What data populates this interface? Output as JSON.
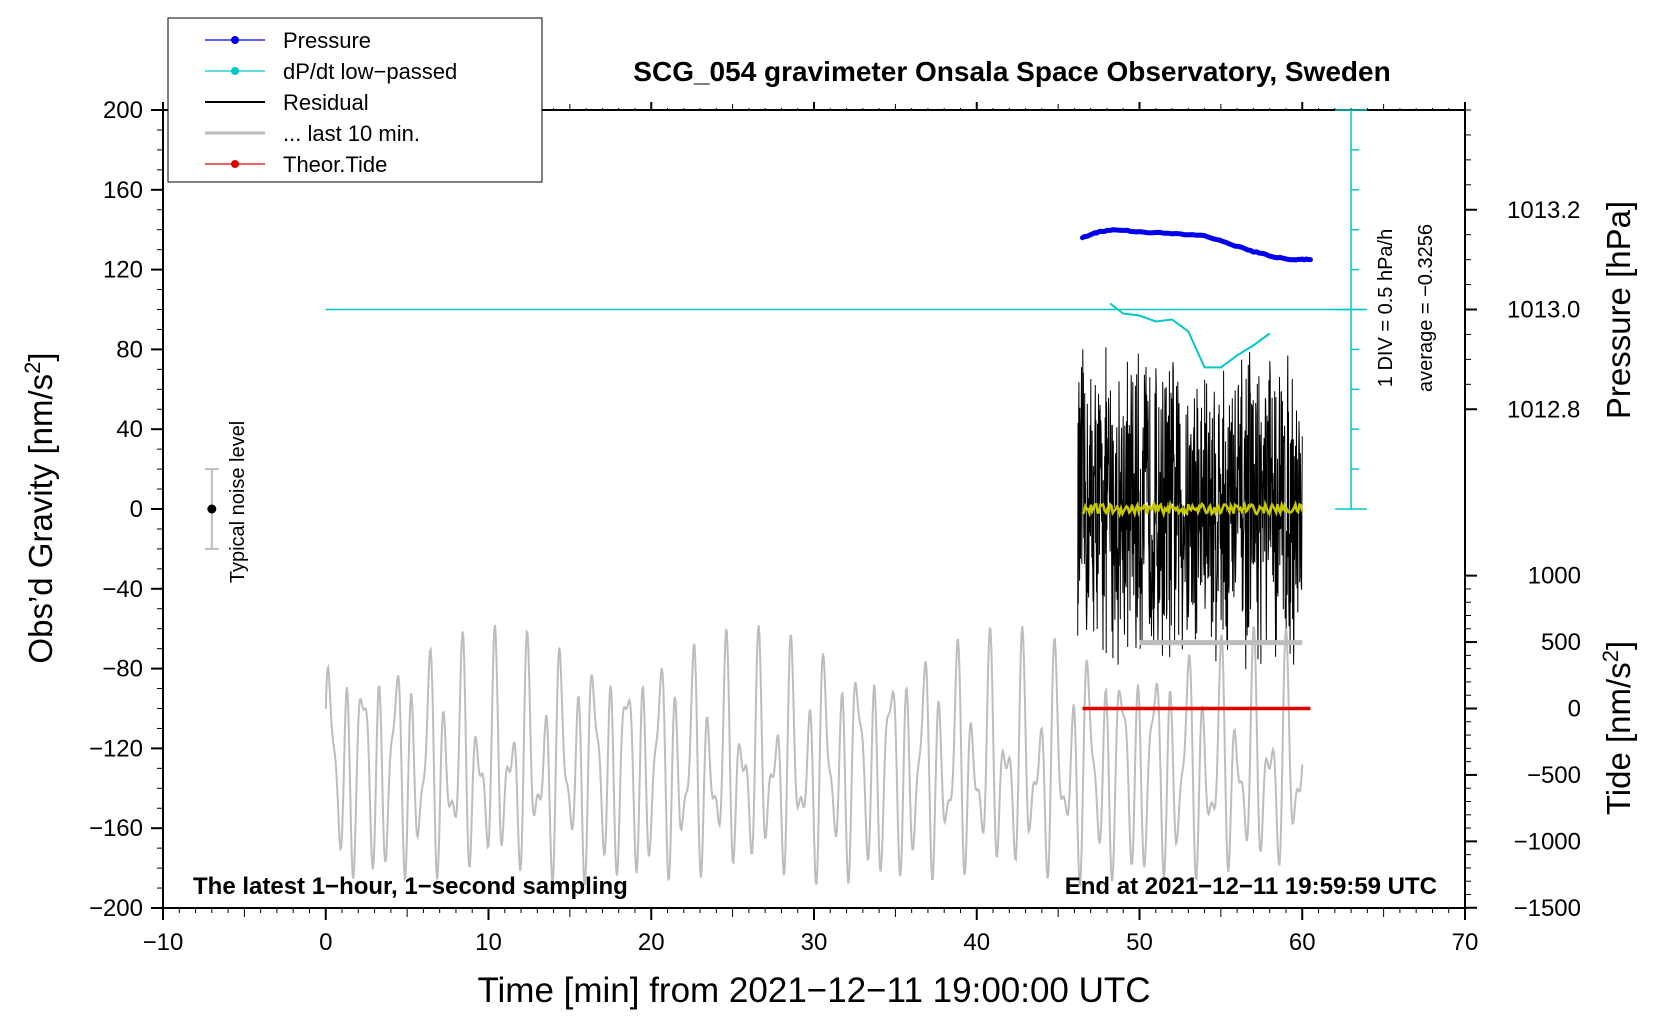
{
  "chart_data": {
    "type": "line",
    "title": "SCG_054 gravimeter Onsala Space Observatory, Sweden",
    "xlabel": "Time [min] from 2021−12−11 19:00:00 UTC",
    "ylabel_main": "Obs’d Gravity [nm/s",
    "ylabel_main_sup": "2",
    "ylabel_main_tail": "]",
    "ylabel_pressure": "Pressure [hPa]",
    "ylabel_tide": "Tide [nm/s",
    "ylabel_tide_sup": "2",
    "ylabel_tide_tail": "]",
    "xlim": [
      -10,
      70
    ],
    "ylim": [
      -200,
      200
    ],
    "x_ticks": [
      "−10",
      "0",
      "10",
      "20",
      "30",
      "40",
      "50",
      "60",
      "70"
    ],
    "x_tick_values": [
      -10,
      0,
      10,
      20,
      30,
      40,
      50,
      60,
      70
    ],
    "y_ticks": [
      "200",
      "160",
      "120",
      "80",
      "40",
      "0",
      "−40",
      "−80",
      "−120",
      "−160",
      "−200"
    ],
    "y_tick_values": [
      200,
      160,
      120,
      80,
      40,
      0,
      -40,
      -80,
      -120,
      -160,
      -200
    ],
    "pressure_axis": {
      "ticks": [
        "1013.2",
        "1013.0",
        "1012.8"
      ],
      "tick_values": [
        1013.2,
        1013.0,
        1012.8
      ],
      "gravity_equivalent": [
        150,
        100,
        50
      ]
    },
    "tide_axis": {
      "ticks": [
        "1000",
        "500",
        "0",
        "−500",
        "−1000",
        "−1500"
      ],
      "tick_values": [
        1000,
        500,
        0,
        -500,
        -1000,
        -1500
      ]
    },
    "legend": {
      "placement": "top-left",
      "entries": [
        {
          "label": "Pressure",
          "color": "#0000ee",
          "marker": true
        },
        {
          "label": "dP/dt low−passed",
          "color": "#00c8c8",
          "marker": true
        },
        {
          "label": "Residual",
          "color": "#000000",
          "marker": false
        },
        {
          "label": "... last 10 min.",
          "color": "#bdbdbd",
          "marker": false
        },
        {
          "label": "Theor.Tide",
          "color": "#e00000",
          "marker": true
        }
      ]
    },
    "annotations": {
      "bottom_left": "The latest 1−hour, 1−second sampling",
      "bottom_right": "End at 2021−12−11 19:59:59 UTC",
      "noise_label": "Typical noise level",
      "dpdt_scale": "1 DIV = 0.5 hPa/h",
      "dpdt_average": "average = −0.3256"
    },
    "noise_bar": {
      "x": -7,
      "center": 0,
      "low": -20,
      "high": 20
    },
    "series": [
      {
        "name": "Pressure",
        "color": "#0000ee",
        "x": [
          46.5,
          47.5,
          48.5,
          50,
          52,
          54,
          55.5,
          57,
          58.5,
          59.5,
          60.5
        ],
        "gravity_equiv": [
          136,
          139,
          140,
          139,
          138,
          137,
          133,
          129,
          126,
          125,
          125
        ]
      },
      {
        "name": "dP/dt low−passed",
        "color": "#00c8c8",
        "x": [
          48.2,
          49,
          50,
          51,
          52,
          53,
          54,
          55,
          56,
          57,
          58
        ],
        "gravity_equiv": [
          103,
          98,
          97,
          94,
          95,
          89,
          71,
          71,
          77,
          82,
          88
        ]
      },
      {
        "name": "dP/dt average line",
        "color": "#00c8c8",
        "x": [
          0,
          63
        ],
        "gravity_equiv": [
          100,
          100
        ]
      },
      {
        "name": "Residual",
        "color": "#000000",
        "x_range": [
          46.2,
          60
        ],
        "amplitude": 85,
        "center": 0
      },
      {
        "name": "Residual smoothed",
        "color": "#c8c800",
        "x_range": [
          46.5,
          60
        ],
        "center": 0
      },
      {
        "name": "... last 10 min.",
        "color": "#bdbdbd",
        "x": [
          50,
          60
        ],
        "gravity_equiv": [
          -67,
          -67
        ]
      },
      {
        "name": "Gravity (grey)",
        "color": "#bdbdbd",
        "x_range": [
          0,
          60
        ],
        "center": -130,
        "amplitude": 60
      },
      {
        "name": "Theor.Tide",
        "color": "#e00000",
        "x": [
          46.5,
          60.5
        ],
        "tide_values": [
          0,
          0
        ]
      }
    ]
  }
}
